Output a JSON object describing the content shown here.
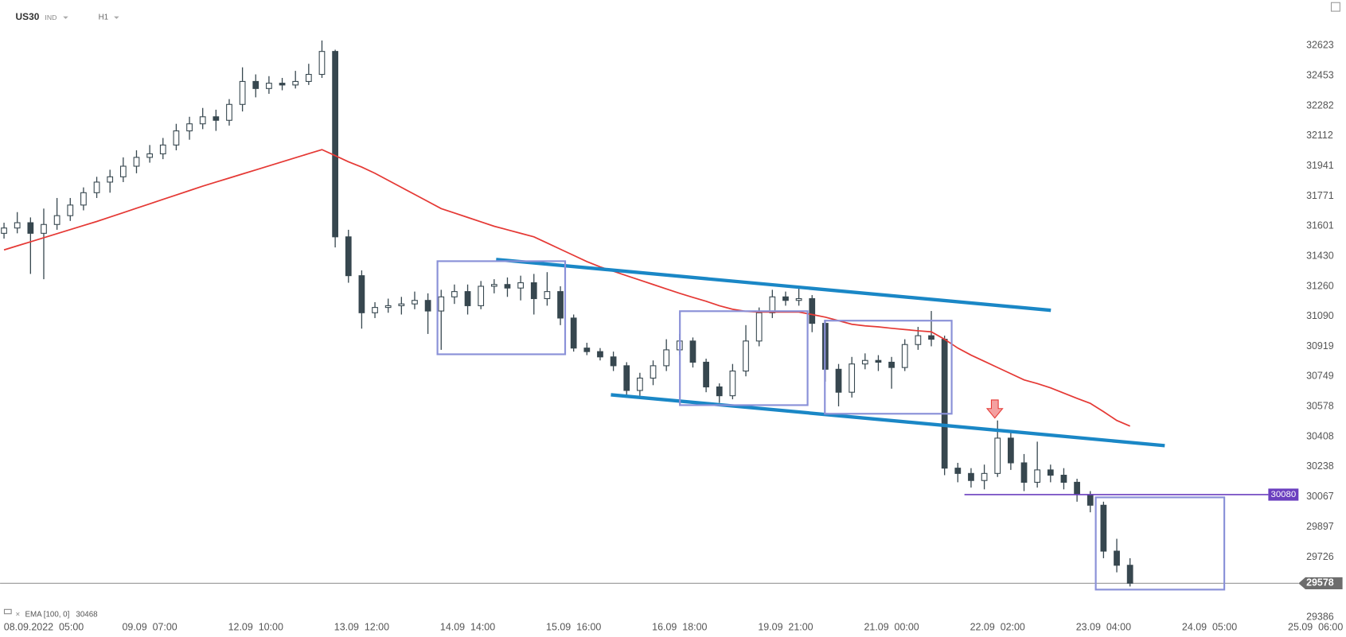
{
  "header": {
    "symbol": "US30",
    "market": "IND",
    "timeframe": "H1"
  },
  "chart_data": {
    "type": "candlestick",
    "up_color": "#ffffff",
    "down_color": "#37474f",
    "candles": [
      [
        31560,
        31620,
        31530,
        31590
      ],
      [
        31590,
        31680,
        31560,
        31620
      ],
      [
        31620,
        31650,
        31330,
        31560
      ],
      [
        31560,
        31700,
        31300,
        31610
      ],
      [
        31610,
        31760,
        31580,
        31660
      ],
      [
        31660,
        31760,
        31630,
        31720
      ],
      [
        31720,
        31820,
        31690,
        31790
      ],
      [
        31790,
        31880,
        31760,
        31850
      ],
      [
        31850,
        31920,
        31790,
        31880
      ],
      [
        31880,
        31990,
        31850,
        31940
      ],
      [
        31940,
        32030,
        31900,
        31990
      ],
      [
        31990,
        32060,
        31960,
        32010
      ],
      [
        32010,
        32100,
        31980,
        32060
      ],
      [
        32060,
        32180,
        32030,
        32140
      ],
      [
        32140,
        32220,
        32090,
        32180
      ],
      [
        32180,
        32270,
        32150,
        32220
      ],
      [
        32220,
        32260,
        32140,
        32200
      ],
      [
        32200,
        32320,
        32170,
        32290
      ],
      [
        32290,
        32500,
        32250,
        32420
      ],
      [
        32420,
        32460,
        32330,
        32380
      ],
      [
        32380,
        32450,
        32350,
        32410
      ],
      [
        32410,
        32440,
        32370,
        32400
      ],
      [
        32400,
        32480,
        32380,
        32420
      ],
      [
        32420,
        32520,
        32400,
        32460
      ],
      [
        32460,
        32652,
        32440,
        32590
      ],
      [
        32590,
        32600,
        31480,
        31540
      ],
      [
        31540,
        31580,
        31280,
        31320
      ],
      [
        31320,
        31350,
        31020,
        31110
      ],
      [
        31110,
        31170,
        31080,
        31140
      ],
      [
        31140,
        31190,
        31110,
        31150
      ],
      [
        31150,
        31200,
        31100,
        31160
      ],
      [
        31160,
        31230,
        31130,
        31180
      ],
      [
        31180,
        31220,
        30990,
        31120
      ],
      [
        31120,
        31240,
        30900,
        31200
      ],
      [
        31200,
        31270,
        31160,
        31230
      ],
      [
        31230,
        31270,
        31100,
        31150
      ],
      [
        31150,
        31290,
        31130,
        31260
      ],
      [
        31260,
        31300,
        31220,
        31270
      ],
      [
        31270,
        31310,
        31200,
        31250
      ],
      [
        31250,
        31320,
        31180,
        31280
      ],
      [
        31280,
        31330,
        31100,
        31190
      ],
      [
        31190,
        31340,
        31150,
        31230
      ],
      [
        31230,
        31260,
        31040,
        31080
      ],
      [
        31080,
        31100,
        30890,
        30910
      ],
      [
        30910,
        30940,
        30870,
        30890
      ],
      [
        30890,
        30910,
        30840,
        30860
      ],
      [
        30860,
        30890,
        30780,
        30810
      ],
      [
        30810,
        30830,
        30640,
        30670
      ],
      [
        30670,
        30770,
        30640,
        30740
      ],
      [
        30740,
        30840,
        30700,
        30810
      ],
      [
        30810,
        30960,
        30780,
        30900
      ],
      [
        30900,
        30990,
        30870,
        30950
      ],
      [
        30950,
        30970,
        30800,
        30830
      ],
      [
        30830,
        30850,
        30660,
        30690
      ],
      [
        30690,
        30710,
        30600,
        30640
      ],
      [
        30640,
        30820,
        30620,
        30780
      ],
      [
        30780,
        31040,
        30750,
        30950
      ],
      [
        30950,
        31140,
        30920,
        31110
      ],
      [
        31110,
        31240,
        31080,
        31200
      ],
      [
        31200,
        31230,
        31150,
        31180
      ],
      [
        31180,
        31260,
        31150,
        31190
      ],
      [
        31190,
        31210,
        31000,
        31050
      ],
      [
        31050,
        31070,
        30720,
        30790
      ],
      [
        30790,
        30820,
        30580,
        30660
      ],
      [
        30660,
        30860,
        30630,
        30820
      ],
      [
        30820,
        30880,
        30790,
        30840
      ],
      [
        30840,
        30870,
        30780,
        30830
      ],
      [
        30830,
        30860,
        30680,
        30800
      ],
      [
        30800,
        30960,
        30780,
        30930
      ],
      [
        30930,
        31030,
        30900,
        30980
      ],
      [
        30980,
        31120,
        30920,
        30960
      ],
      [
        30960,
        30980,
        30190,
        30230
      ],
      [
        30230,
        30260,
        30150,
        30200
      ],
      [
        30200,
        30230,
        30120,
        30160
      ],
      [
        30160,
        30250,
        30110,
        30200
      ],
      [
        30200,
        30500,
        30180,
        30400
      ],
      [
        30400,
        30440,
        30220,
        30260
      ],
      [
        30260,
        30310,
        30100,
        30150
      ],
      [
        30150,
        30380,
        30120,
        30220
      ],
      [
        30220,
        30250,
        30150,
        30190
      ],
      [
        30190,
        30230,
        30110,
        30150
      ],
      [
        30150,
        30170,
        30040,
        30080
      ],
      [
        30080,
        30100,
        29980,
        30020
      ],
      [
        30020,
        30040,
        29720,
        29760
      ],
      [
        29760,
        29830,
        29640,
        29680
      ],
      [
        29680,
        29720,
        29560,
        29578
      ]
    ],
    "ema": {
      "name": "EMA [100, 0]",
      "color": "#e53935",
      "values": [
        31466,
        31489,
        31512,
        31535,
        31558,
        31581,
        31604,
        31627,
        31652,
        31677,
        31702,
        31727,
        31752,
        31777,
        31802,
        31827,
        31850,
        31873,
        31896,
        31919,
        31942,
        31965,
        31988,
        32011,
        32034,
        32000,
        31965,
        31935,
        31900,
        31860,
        31820,
        31780,
        31740,
        31700,
        31675,
        31650,
        31625,
        31600,
        31580,
        31560,
        31540,
        31505,
        31470,
        31435,
        31400,
        31370,
        31345,
        31320,
        31295,
        31270,
        31245,
        31220,
        31197,
        31175,
        31150,
        31130,
        31118,
        31114,
        31114,
        31114,
        31114,
        31100,
        31085,
        31065,
        31045,
        31036,
        31030,
        31022,
        31015,
        31008,
        31002,
        30960,
        30910,
        30870,
        30835,
        30800,
        30765,
        30730,
        30709,
        30685,
        30655,
        30625,
        30597,
        30550,
        30500,
        30468
      ]
    },
    "level": {
      "value": 30080,
      "color": "#6b3fbf"
    },
    "last_price": 29578,
    "ylim": [
      29386,
      32686
    ],
    "yticks": [
      32623,
      32453,
      32282,
      32112,
      31941,
      31771,
      31601,
      31430,
      31260,
      31090,
      30919,
      30749,
      30578,
      30408,
      30238,
      30067,
      29897,
      29726,
      29386
    ],
    "xlim": [
      -0.3,
      101.3
    ],
    "xticks": [
      {
        "value": 3,
        "label": "08.09.2022  05:00"
      },
      {
        "value": 11,
        "label": "09.09  07:00"
      },
      {
        "value": 19,
        "label": "12.09  10:00"
      },
      {
        "value": 27,
        "label": "13.09  12:00"
      },
      {
        "value": 35,
        "label": "14.09  14:00"
      },
      {
        "value": 43,
        "label": "15.09  16:00"
      },
      {
        "value": 51,
        "label": "16.09  18:00"
      },
      {
        "value": 59,
        "label": "19.09  21:00"
      },
      {
        "value": 67,
        "label": "21.09  00:00"
      },
      {
        "value": 75,
        "label": "22.09  02:00"
      },
      {
        "value": 83,
        "label": "23.09  04:00"
      },
      {
        "value": 91,
        "label": "24.09  05:00"
      },
      {
        "value": 99,
        "label": "25.09  06:00"
      }
    ]
  }
}
